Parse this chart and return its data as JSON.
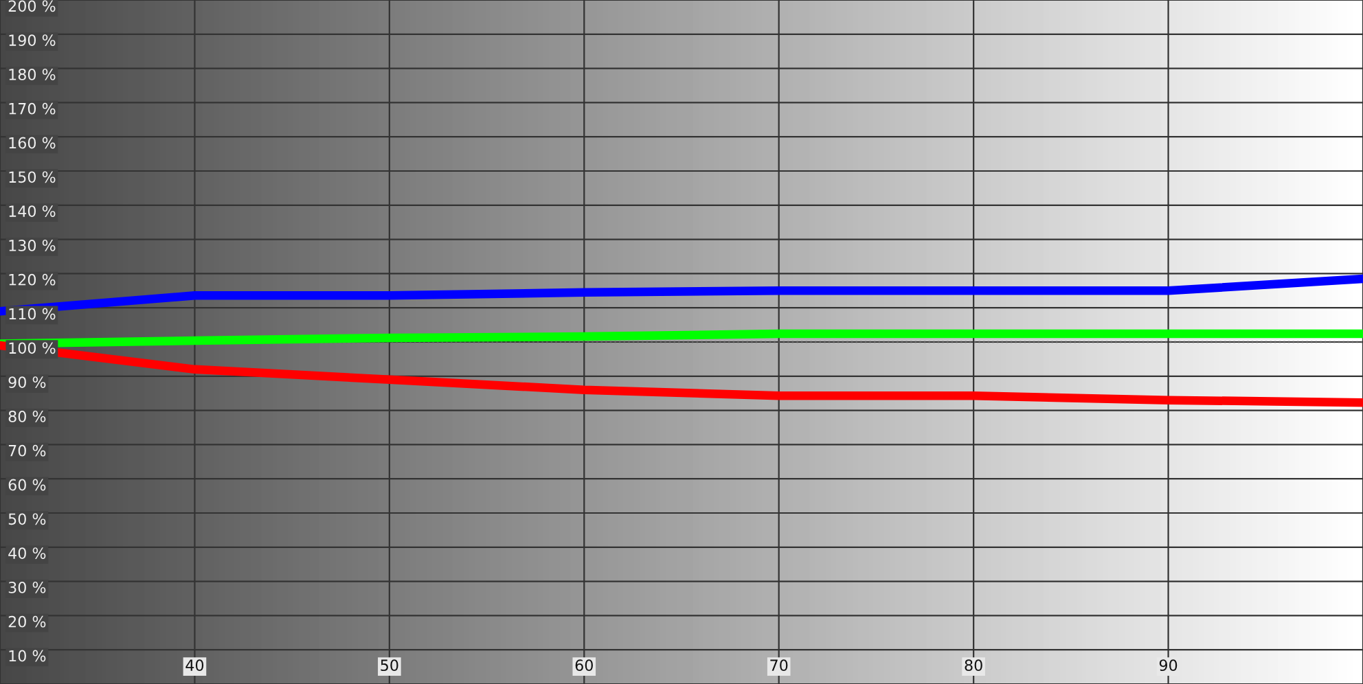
{
  "chart_data": {
    "type": "line",
    "x": [
      30,
      40,
      50,
      60,
      70,
      80,
      90,
      100
    ],
    "series": [
      {
        "color": "#0000ff",
        "values": [
          109,
          113.6,
          113.6,
          114.5,
          115,
          115,
          115,
          118.5
        ]
      },
      {
        "color": "#00ff00",
        "values": [
          99.5,
          100.4,
          101.2,
          101.6,
          102.4,
          102.4,
          102.4,
          102.4
        ]
      },
      {
        "color": "#ff0000",
        "values": [
          99,
          92,
          89,
          86,
          84.3,
          84.3,
          83,
          82.3
        ]
      }
    ],
    "xlim": [
      30,
      100
    ],
    "xticks": [
      40,
      50,
      60,
      70,
      80,
      90
    ],
    "ylim": [
      0,
      200
    ],
    "yticks": [
      {
        "value": 10,
        "label": "10 %"
      },
      {
        "value": 20,
        "label": "20 %"
      },
      {
        "value": 30,
        "label": "30 %"
      },
      {
        "value": 40,
        "label": "40 %"
      },
      {
        "value": 50,
        "label": "50 %"
      },
      {
        "value": 60,
        "label": "60 %"
      },
      {
        "value": 70,
        "label": "70 %"
      },
      {
        "value": 80,
        "label": "80 %"
      },
      {
        "value": 90,
        "label": "90 %"
      },
      {
        "value": 100,
        "label": "100 %"
      },
      {
        "value": 110,
        "label": "110 %"
      },
      {
        "value": 120,
        "label": "120 %"
      },
      {
        "value": 130,
        "label": "130 %"
      },
      {
        "value": 140,
        "label": "140 %"
      },
      {
        "value": 150,
        "label": "150 %"
      },
      {
        "value": 160,
        "label": "160 %"
      },
      {
        "value": 170,
        "label": "170 %"
      },
      {
        "value": 180,
        "label": "180 %"
      },
      {
        "value": 190,
        "label": "190 %"
      },
      {
        "value": 200,
        "label": "200 %"
      }
    ],
    "ref_lines": [
      {
        "axis": "y",
        "value": 100,
        "color": "#555555",
        "line_style": "dotted"
      }
    ],
    "grid": true,
    "marker": "none",
    "line_style": "solid",
    "legend": false
  }
}
